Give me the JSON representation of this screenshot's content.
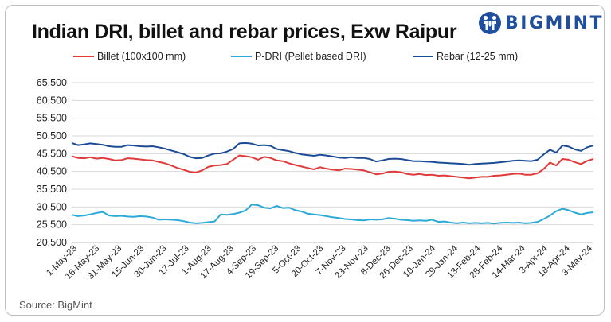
{
  "chart_data": {
    "type": "line",
    "title": "Indian DRI, billet and rebar prices, Exw Raipur",
    "source": "Source: BigMint",
    "brand": "BIGMINT",
    "xlabel": "",
    "ylabel": "",
    "ylim": [
      20500,
      65500
    ],
    "y_ticks": [
      "65,500",
      "60,500",
      "55,500",
      "50,500",
      "45,500",
      "40,500",
      "35,500",
      "30,500",
      "25,500",
      "20,500"
    ],
    "x_ticks": [
      "1-May-23",
      "16-May-23",
      "31-May-23",
      "15-Jun-23",
      "30-Jun-23",
      "17-Jul-23",
      "1-Aug-23",
      "17-Aug-23",
      "4-Sep-23",
      "19-Sep-23",
      "5-Oct-23",
      "20-Oct-23",
      "7-Nov-23",
      "23-Nov-23",
      "8-Dec-23",
      "26-Dec-23",
      "10-Jan-24",
      "29-Jan-24",
      "13-Feb-24",
      "28-Feb-24",
      "14-Mar-24",
      "3-Apr-24",
      "18-Apr-24",
      "3-May-24"
    ],
    "grid": true,
    "legend_position": "top",
    "series": [
      {
        "name": "Billet (100x100 mm)",
        "color": "#e03a3a",
        "values": [
          44800,
          44300,
          44200,
          44500,
          44100,
          44300,
          44000,
          43600,
          43700,
          44200,
          44100,
          43900,
          43700,
          43600,
          43200,
          42800,
          42200,
          41500,
          41000,
          40400,
          40200,
          40800,
          41800,
          42200,
          42300,
          42600,
          43800,
          45000,
          44800,
          44500,
          43800,
          44600,
          44300,
          43600,
          43400,
          42800,
          42300,
          41900,
          41500,
          41100,
          41700,
          41300,
          41000,
          40800,
          41300,
          41200,
          41000,
          40800,
          40300,
          39700,
          39900,
          40400,
          40500,
          40300,
          39800,
          39600,
          39800,
          39500,
          39600,
          39300,
          39400,
          39200,
          39000,
          38800,
          38600,
          38800,
          39000,
          39000,
          39300,
          39400,
          39600,
          39800,
          39900,
          39600,
          39600,
          40000,
          41200,
          43000,
          42200,
          44000,
          43800,
          43100,
          42600,
          43500,
          44000
        ]
      },
      {
        "name": "P-DRI (Pellet based DRI)",
        "color": "#2ba9d9",
        "values": [
          28300,
          27900,
          28100,
          28400,
          28800,
          29100,
          28100,
          27900,
          28000,
          27800,
          27700,
          27900,
          27800,
          27500,
          26900,
          27000,
          26900,
          26800,
          26500,
          26100,
          25900,
          26000,
          26200,
          26400,
          28400,
          28300,
          28500,
          28900,
          29500,
          31200,
          31000,
          30300,
          30100,
          30800,
          30200,
          30300,
          29600,
          29200,
          28600,
          28400,
          28200,
          27900,
          27600,
          27400,
          27100,
          27000,
          26800,
          26700,
          27000,
          26900,
          27000,
          27400,
          27200,
          26900,
          26800,
          26600,
          26700,
          26600,
          26900,
          26300,
          26400,
          26100,
          25900,
          26100,
          25900,
          26000,
          25900,
          26000,
          25800,
          26000,
          26100,
          26000,
          26100,
          25900,
          26000,
          26300,
          27100,
          28100,
          29300,
          30000,
          29600,
          28900,
          28400,
          28800,
          29000
        ]
      },
      {
        "name": "Rebar (12-25 mm)",
        "color": "#1c4b96",
        "values": [
          48500,
          47900,
          48100,
          48400,
          48200,
          48000,
          47600,
          47400,
          47400,
          47900,
          47800,
          47600,
          47500,
          47600,
          47300,
          46900,
          46400,
          45900,
          45400,
          44600,
          44200,
          44300,
          45000,
          45500,
          45600,
          46100,
          46800,
          48400,
          48500,
          48300,
          47800,
          47900,
          47700,
          46800,
          46500,
          46200,
          45700,
          45300,
          45100,
          44900,
          45200,
          45000,
          44700,
          44400,
          44300,
          44500,
          44300,
          44300,
          44000,
          43300,
          43600,
          44000,
          44100,
          44000,
          43700,
          43400,
          43400,
          43300,
          43200,
          43000,
          42900,
          42800,
          42700,
          42600,
          42400,
          42600,
          42700,
          42800,
          42900,
          43100,
          43300,
          43500,
          43600,
          43500,
          43400,
          43800,
          45300,
          46600,
          45800,
          47800,
          47500,
          46700,
          46300,
          47300,
          47800
        ]
      }
    ]
  }
}
